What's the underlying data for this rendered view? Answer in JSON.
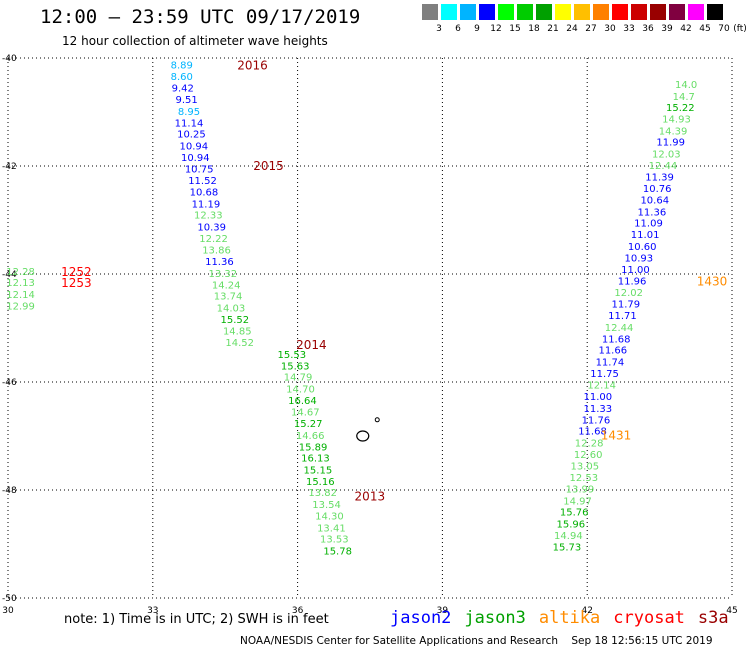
{
  "header": {
    "title": "12:00 – 23:59 UTC 09/17/2019",
    "subtitle": "12 hour collection of altimeter wave heights"
  },
  "colorbar": {
    "labels": [
      "3",
      "6",
      "9",
      "12",
      "15",
      "18",
      "21",
      "24",
      "27",
      "30",
      "33",
      "36",
      "39",
      "42",
      "45",
      "70"
    ],
    "unit": "(ft)",
    "colors": [
      "#7f7f7f",
      "#00ffff",
      "#00b4ff",
      "#0000ff",
      "#00ff00",
      "#00cc00",
      "#00a000",
      "#ffff00",
      "#ffbf00",
      "#ff8000",
      "#ff0000",
      "#cc0000",
      "#990000",
      "#800040",
      "#ff00ff",
      "#000000"
    ]
  },
  "map": {
    "lon_ticks": [
      "30",
      "33",
      "36",
      "39",
      "42",
      "45"
    ],
    "lat_ticks": [
      "-40",
      "-42",
      "-44",
      "-46",
      "-48",
      "-50"
    ],
    "lon_range": [
      30,
      45
    ],
    "lat_range": [
      -50,
      -40
    ]
  },
  "tracks": [
    {
      "id": "pass-2016",
      "label": "2016",
      "label_color": "#990000",
      "points": [
        {
          "lon": 33.6,
          "lat": -40.12,
          "v": "8.89",
          "c": "#00b4ff"
        },
        {
          "lon": 33.6,
          "lat": -40.33,
          "v": "8.60",
          "c": "#00b4ff"
        },
        {
          "lon": 33.62,
          "lat": -40.55,
          "v": "9.42",
          "c": "#0000ff"
        },
        {
          "lon": 33.7,
          "lat": -40.76,
          "v": "9.51",
          "c": "#0000ff"
        },
        {
          "lon": 33.75,
          "lat": -40.98,
          "v": "8.95",
          "c": "#00b4ff"
        },
        {
          "lon": 33.75,
          "lat": -41.19,
          "v": "11.14",
          "c": "#0000ff"
        },
        {
          "lon": 33.8,
          "lat": -41.4,
          "v": "10.25",
          "c": "#0000ff"
        },
        {
          "lon": 33.85,
          "lat": -41.62,
          "v": "10.94",
          "c": "#0000ff"
        },
        {
          "lon": 33.88,
          "lat": -41.83,
          "v": "10.94",
          "c": "#0000ff"
        },
        {
          "lon": 33.96,
          "lat": -42.05,
          "v": "10.75",
          "c": "#0000ff"
        },
        {
          "lon": 34.03,
          "lat": -42.26,
          "v": "11.52",
          "c": "#0000ff"
        },
        {
          "lon": 34.06,
          "lat": -42.47,
          "v": "10.68",
          "c": "#0000ff"
        },
        {
          "lon": 34.1,
          "lat": -42.69,
          "v": "11.19",
          "c": "#0000ff"
        },
        {
          "lon": 34.15,
          "lat": -42.9,
          "v": "12.33",
          "c": "#66dd66"
        },
        {
          "lon": 34.22,
          "lat": -43.12,
          "v": "10.39",
          "c": "#0000ff"
        },
        {
          "lon": 34.26,
          "lat": -43.33,
          "v": "12.22",
          "c": "#66dd66"
        },
        {
          "lon": 34.32,
          "lat": -43.55,
          "v": "13.86",
          "c": "#66dd66"
        },
        {
          "lon": 34.38,
          "lat": -43.76,
          "v": "11.36",
          "c": "#0000ff"
        },
        {
          "lon": 34.45,
          "lat": -43.98,
          "v": "13.32",
          "c": "#66dd66"
        },
        {
          "lon": 34.52,
          "lat": -44.19,
          "v": "14.24",
          "c": "#66dd66"
        },
        {
          "lon": 34.56,
          "lat": -44.4,
          "v": "13.74",
          "c": "#66dd66"
        },
        {
          "lon": 34.62,
          "lat": -44.62,
          "v": "14.03",
          "c": "#66dd66"
        },
        {
          "lon": 34.7,
          "lat": -44.83,
          "v": "15.52",
          "c": "#00b000"
        },
        {
          "lon": 34.75,
          "lat": -45.05,
          "v": "14.85",
          "c": "#66dd66"
        },
        {
          "lon": 34.8,
          "lat": -45.26,
          "v": "14.52",
          "c": "#66dd66"
        }
      ],
      "label_at": {
        "lon": 34.75,
        "lat": -40.12
      },
      "second_label": "2015",
      "second_label_at": {
        "lon": 35.08,
        "lat": -41.98
      },
      "third_label": "2014",
      "third_label_at": {
        "lon": 35.97,
        "lat": -45.3
      }
    },
    {
      "id": "pass-2013",
      "label": "2013",
      "label_color": "#990000",
      "points": [
        {
          "lon": 35.88,
          "lat": -45.48,
          "v": "15.53",
          "c": "#00b000"
        },
        {
          "lon": 35.95,
          "lat": -45.69,
          "v": "15.63",
          "c": "#00b000"
        },
        {
          "lon": 36.01,
          "lat": -45.9,
          "v": "14.79",
          "c": "#66dd66"
        },
        {
          "lon": 36.06,
          "lat": -46.12,
          "v": "14.70",
          "c": "#66dd66"
        },
        {
          "lon": 36.1,
          "lat": -46.33,
          "v": "16.64",
          "c": "#00b000"
        },
        {
          "lon": 36.16,
          "lat": -46.55,
          "v": "14.67",
          "c": "#66dd66"
        },
        {
          "lon": 36.22,
          "lat": -46.76,
          "v": "15.27",
          "c": "#00b000"
        },
        {
          "lon": 36.26,
          "lat": -46.98,
          "v": "14.66",
          "c": "#66dd66"
        },
        {
          "lon": 36.32,
          "lat": -47.19,
          "v": "15.89",
          "c": "#00b000"
        },
        {
          "lon": 36.37,
          "lat": -47.4,
          "v": "16.13",
          "c": "#00b000"
        },
        {
          "lon": 36.42,
          "lat": -47.62,
          "v": "15.15",
          "c": "#00b000"
        },
        {
          "lon": 36.47,
          "lat": -47.83,
          "v": "15.16",
          "c": "#00b000"
        },
        {
          "lon": 36.52,
          "lat": -48.04,
          "v": "13.82",
          "c": "#66dd66"
        },
        {
          "lon": 36.6,
          "lat": -48.26,
          "v": "13.54",
          "c": "#66dd66"
        },
        {
          "lon": 36.66,
          "lat": -48.47,
          "v": "14.30",
          "c": "#66dd66"
        },
        {
          "lon": 36.7,
          "lat": -48.69,
          "v": "13.41",
          "c": "#66dd66"
        },
        {
          "lon": 36.76,
          "lat": -48.9,
          "v": "13.53",
          "c": "#66dd66"
        },
        {
          "lon": 36.83,
          "lat": -49.12,
          "v": "15.78",
          "c": "#00b000"
        }
      ],
      "label_at": {
        "lon": 37.18,
        "lat": -48.1
      }
    },
    {
      "id": "pass-1252",
      "label": "1252",
      "label_color": "#ff0000",
      "points": [
        {
          "lon": 30.26,
          "lat": -43.94,
          "v": "12.28",
          "c": "#66dd66"
        },
        {
          "lon": 30.26,
          "lat": -44.15,
          "v": "12.13",
          "c": "#66dd66"
        },
        {
          "lon": 30.26,
          "lat": -44.37,
          "v": "12.14",
          "c": "#66dd66"
        },
        {
          "lon": 30.26,
          "lat": -44.58,
          "v": "12.99",
          "c": "#66dd66"
        }
      ],
      "label_at": {
        "lon": 31.1,
        "lat": -43.94
      },
      "second_label": "1253",
      "second_label_at": {
        "lon": 31.1,
        "lat": -44.15
      }
    },
    {
      "id": "pass-1431",
      "label": "1431",
      "label_color": "#ff8c00",
      "points": [
        {
          "lon": 41.58,
          "lat": -49.05,
          "v": "15.73",
          "c": "#00b000"
        },
        {
          "lon": 41.61,
          "lat": -48.83,
          "v": "14.94",
          "c": "#66dd66"
        },
        {
          "lon": 41.66,
          "lat": -48.62,
          "v": "15.96",
          "c": "#00b000"
        },
        {
          "lon": 41.73,
          "lat": -48.4,
          "v": "15.76",
          "c": "#00b000"
        },
        {
          "lon": 41.8,
          "lat": -48.19,
          "v": "14.97",
          "c": "#66dd66"
        },
        {
          "lon": 41.85,
          "lat": -47.97,
          "v": "13.99",
          "c": "#66dd66"
        },
        {
          "lon": 41.93,
          "lat": -47.76,
          "v": "12.53",
          "c": "#66dd66"
        },
        {
          "lon": 41.95,
          "lat": -47.55,
          "v": "13.05",
          "c": "#66dd66"
        },
        {
          "lon": 42.02,
          "lat": -47.33,
          "v": "12.60",
          "c": "#66dd66"
        },
        {
          "lon": 42.04,
          "lat": -47.12,
          "v": "12.28",
          "c": "#66dd66"
        },
        {
          "lon": 42.11,
          "lat": -46.9,
          "v": "11.68",
          "c": "#0000ff"
        },
        {
          "lon": 42.18,
          "lat": -46.69,
          "v": "11.76",
          "c": "#0000ff"
        },
        {
          "lon": 42.22,
          "lat": -46.48,
          "v": "11.33",
          "c": "#0000ff"
        },
        {
          "lon": 42.22,
          "lat": -46.26,
          "v": "11.00",
          "c": "#0000ff"
        },
        {
          "lon": 42.3,
          "lat": -46.05,
          "v": "12.14",
          "c": "#66dd66"
        },
        {
          "lon": 42.36,
          "lat": -45.83,
          "v": "11.75",
          "c": "#0000ff"
        },
        {
          "lon": 42.47,
          "lat": -45.62,
          "v": "11.74",
          "c": "#0000ff"
        },
        {
          "lon": 42.53,
          "lat": -45.4,
          "v": "11.66",
          "c": "#0000ff"
        },
        {
          "lon": 42.6,
          "lat": -45.19,
          "v": "11.68",
          "c": "#0000ff"
        },
        {
          "lon": 42.66,
          "lat": -44.98,
          "v": "12.44",
          "c": "#66dd66"
        },
        {
          "lon": 42.73,
          "lat": -44.76,
          "v": "11.71",
          "c": "#0000ff"
        },
        {
          "lon": 42.8,
          "lat": -44.55,
          "v": "11.79",
          "c": "#0000ff"
        },
        {
          "lon": 42.86,
          "lat": -44.33,
          "v": "12.02",
          "c": "#66dd66"
        },
        {
          "lon": 42.93,
          "lat": -44.12,
          "v": "11.96",
          "c": "#0000ff"
        },
        {
          "lon": 43.0,
          "lat": -43.91,
          "v": "11.00",
          "c": "#0000ff"
        },
        {
          "lon": 43.07,
          "lat": -43.69,
          "v": "10.93",
          "c": "#0000ff"
        },
        {
          "lon": 43.14,
          "lat": -43.48,
          "v": "10.60",
          "c": "#0000ff"
        },
        {
          "lon": 43.2,
          "lat": -43.26,
          "v": "11.01",
          "c": "#0000ff"
        },
        {
          "lon": 43.27,
          "lat": -43.05,
          "v": "11.09",
          "c": "#0000ff"
        },
        {
          "lon": 43.34,
          "lat": -42.84,
          "v": "11.36",
          "c": "#0000ff"
        },
        {
          "lon": 43.4,
          "lat": -42.62,
          "v": "10.64",
          "c": "#0000ff"
        },
        {
          "lon": 43.45,
          "lat": -42.41,
          "v": "10.76",
          "c": "#0000ff"
        },
        {
          "lon": 43.5,
          "lat": -42.19,
          "v": "11.39",
          "c": "#0000ff"
        },
        {
          "lon": 43.57,
          "lat": -41.98,
          "v": "12.44",
          "c": "#66dd66"
        },
        {
          "lon": 43.64,
          "lat": -41.77,
          "v": "12.03",
          "c": "#66dd66"
        },
        {
          "lon": 43.73,
          "lat": -41.55,
          "v": "11.99",
          "c": "#0000ff"
        },
        {
          "lon": 43.78,
          "lat": -41.34,
          "v": "14.39",
          "c": "#66dd66"
        },
        {
          "lon": 43.85,
          "lat": -41.12,
          "v": "14.93",
          "c": "#66dd66"
        },
        {
          "lon": 43.93,
          "lat": -40.91,
          "v": "15.22",
          "c": "#00b000"
        },
        {
          "lon": 44.0,
          "lat": -40.7,
          "v": "14.7",
          "c": "#66dd66"
        },
        {
          "lon": 44.05,
          "lat": -40.48,
          "v": "14.0",
          "c": "#66dd66"
        }
      ],
      "label_at": {
        "lon": 42.28,
        "lat": -46.97
      },
      "second_label": "1430",
      "second_label_at": {
        "lon": 44.27,
        "lat": -44.12
      }
    }
  ],
  "note": "note: 1) Time is in UTC; 2) SWH is in feet",
  "legend": [
    {
      "name": "jason2",
      "color": "#0000ff"
    },
    {
      "name": "jason3",
      "color": "#00a000"
    },
    {
      "name": "altika",
      "color": "#ff8c00"
    },
    {
      "name": "cryosat",
      "color": "#ff0000"
    },
    {
      "name": "s3a",
      "color": "#990000"
    }
  ],
  "footer": "NOAA/NESDIS Center for Satellite Applications and Research    Sep 18 12:56:15 UTC 2019"
}
